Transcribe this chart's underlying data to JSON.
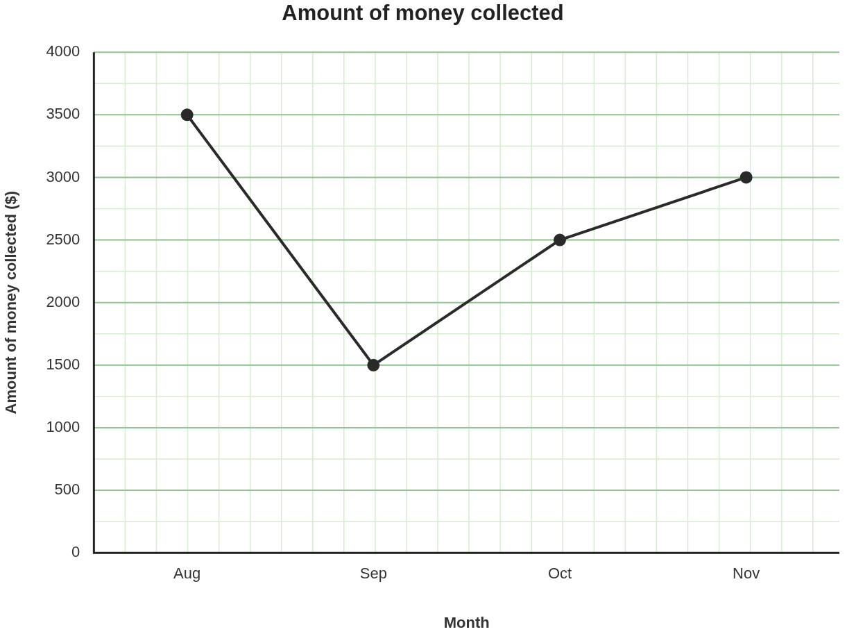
{
  "chart_data": {
    "type": "line",
    "title": "Amount of money collected",
    "xlabel": "Month",
    "ylabel": "Amount of money collected ($)",
    "categories": [
      "Aug",
      "Sep",
      "Oct",
      "Nov"
    ],
    "series": [
      {
        "color": "#2a2a2a",
        "values": [
          3500,
          1500,
          2500,
          3000
        ]
      }
    ],
    "ylim": [
      0,
      4000
    ],
    "yticks": [
      0,
      500,
      1000,
      1500,
      2000,
      2500,
      3000,
      3500,
      4000
    ],
    "grid": true,
    "legend": false,
    "marker": "circle",
    "line_style": "solid"
  }
}
